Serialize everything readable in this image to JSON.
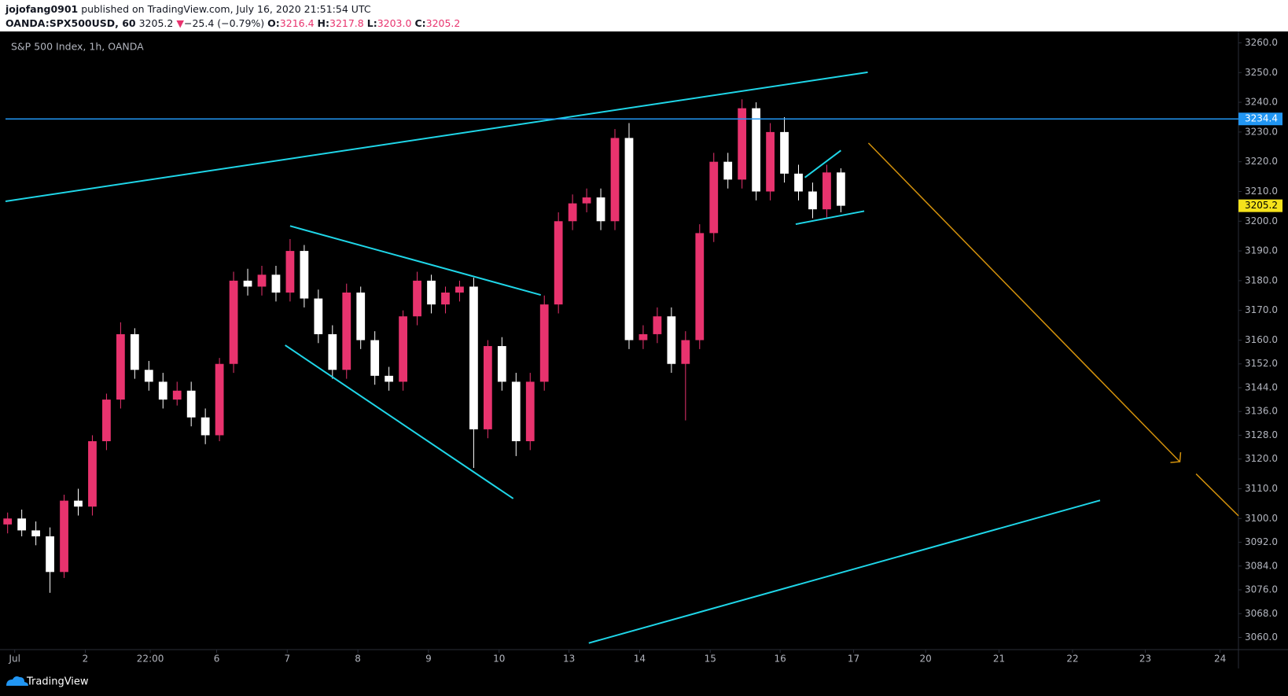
{
  "header": {
    "author": "jojofang0901",
    "published": "published on TradingView.com, July 16, 2020 21:51:54 UTC",
    "symbol": "OANDA:SPX500USD, 60",
    "last": "3205.2",
    "arrow": "▼",
    "change": "−25.4 (−0.79%)",
    "ohlc": [
      {
        "key": "O:",
        "value": "3216.4"
      },
      {
        "key": "H:",
        "value": "3217.8"
      },
      {
        "key": "L:",
        "value": "3203.0"
      },
      {
        "key": "C:",
        "value": "3205.2"
      }
    ]
  },
  "footer": {
    "brand": "TradingView"
  },
  "chart_data": {
    "type": "candlestick",
    "title": "S&P 500 Index, 1h, OANDA",
    "up_color": "#e8336e",
    "down_color": "#ffffff",
    "line_color": "#1fd6e8",
    "hline_color": "#2196f3",
    "arrow_color": "#d4920c",
    "last_color": "#f5e21b",
    "xlim": [
      -0.13,
      17.33
    ],
    "ylim": [
      3055.9,
      3263.3
    ],
    "xticks": [
      {
        "value": 0,
        "label": "Jul"
      },
      {
        "value": 1,
        "label": "2"
      },
      {
        "value": 1.92,
        "label": "22:00"
      },
      {
        "value": 2.86,
        "label": "6"
      },
      {
        "value": 3.86,
        "label": "7"
      },
      {
        "value": 4.86,
        "label": "8"
      },
      {
        "value": 5.86,
        "label": "9"
      },
      {
        "value": 6.86,
        "label": "10"
      },
      {
        "value": 7.85,
        "label": "13"
      },
      {
        "value": 8.85,
        "label": "14"
      },
      {
        "value": 9.85,
        "label": "15"
      },
      {
        "value": 10.84,
        "label": "16"
      },
      {
        "value": 11.88,
        "label": "17"
      },
      {
        "value": 12.9,
        "label": "20"
      },
      {
        "value": 13.94,
        "label": "21"
      },
      {
        "value": 14.98,
        "label": "22"
      },
      {
        "value": 16.01,
        "label": "23"
      },
      {
        "value": 17.07,
        "label": "24"
      }
    ],
    "yticks": [
      {
        "value": 3260,
        "label": "3260.0"
      },
      {
        "value": 3250,
        "label": "3250.0"
      },
      {
        "value": 3240,
        "label": "3240.0"
      },
      {
        "value": 3230,
        "label": "3230.0"
      },
      {
        "value": 3220,
        "label": "3220.0"
      },
      {
        "value": 3210,
        "label": "3210.0"
      },
      {
        "value": 3200,
        "label": "3200.0"
      },
      {
        "value": 3190,
        "label": "3190.0"
      },
      {
        "value": 3180,
        "label": "3180.0"
      },
      {
        "value": 3170,
        "label": "3170.0"
      },
      {
        "value": 3160,
        "label": "3160.0"
      },
      {
        "value": 3152,
        "label": "3152.0"
      },
      {
        "value": 3144,
        "label": "3144.0"
      },
      {
        "value": 3136,
        "label": "3136.0"
      },
      {
        "value": 3128,
        "label": "3128.0"
      },
      {
        "value": 3120,
        "label": "3120.0"
      },
      {
        "value": 3110,
        "label": "3110.0"
      },
      {
        "value": 3100,
        "label": "3100.0"
      },
      {
        "value": 3092,
        "label": "3092.0"
      },
      {
        "value": 3084,
        "label": "3084.0"
      },
      {
        "value": 3076,
        "label": "3076.0"
      },
      {
        "value": 3068,
        "label": "3068.0"
      },
      {
        "value": 3060,
        "label": "3060.0"
      }
    ],
    "x": [
      -0.1,
      0.1,
      0.3,
      0.5,
      0.7,
      0.9,
      1.1,
      1.3,
      1.5,
      1.7,
      1.9,
      2.1,
      2.3,
      2.5,
      2.7,
      2.9,
      3.1,
      3.3,
      3.5,
      3.7,
      3.9,
      4.1,
      4.3,
      4.5,
      4.7,
      4.9,
      5.1,
      5.3,
      5.5,
      5.7,
      5.9,
      6.1,
      6.3,
      6.5,
      6.7,
      6.9,
      7.1,
      7.3,
      7.5,
      7.7,
      7.9,
      8.1,
      8.3,
      8.5,
      8.7,
      8.9,
      9.1,
      9.3,
      9.5,
      9.7,
      9.9,
      10.1,
      10.3,
      10.5,
      10.7,
      10.9,
      11.1,
      11.3,
      11.5,
      11.7
    ],
    "open": [
      3098,
      3100,
      3096,
      3094,
      3082,
      3106,
      3104,
      3126,
      3140,
      3162,
      3150,
      3146,
      3140,
      3143,
      3134,
      3128,
      3152,
      3180,
      3178,
      3182,
      3176,
      3190,
      3174,
      3162,
      3150,
      3176,
      3160,
      3148,
      3146,
      3168,
      3180,
      3172,
      3176,
      3178,
      3130,
      3158,
      3146,
      3126,
      3146,
      3172,
      3200,
      3206,
      3208,
      3200,
      3228,
      3160,
      3162,
      3168,
      3152,
      3160,
      3196,
      3220,
      3214,
      3238,
      3210,
      3230,
      3216,
      3210,
      3204,
      3216.4
    ],
    "high": [
      3102,
      3103,
      3099,
      3097,
      3108,
      3110,
      3128,
      3142,
      3166,
      3164,
      3153,
      3149,
      3146,
      3146,
      3137,
      3154,
      3183,
      3184,
      3185,
      3185,
      3194,
      3192,
      3177,
      3165,
      3179,
      3178,
      3163,
      3151,
      3170,
      3183,
      3182,
      3178,
      3180,
      3181,
      3160,
      3161,
      3149,
      3149,
      3175,
      3203,
      3209,
      3211,
      3211,
      3231,
      3233,
      3165,
      3171,
      3171,
      3163,
      3199,
      3223,
      3223,
      3241,
      3240,
      3233,
      3235,
      3219,
      3213,
      3219,
      3217.8
    ],
    "low": [
      3095,
      3094,
      3091,
      3075,
      3080,
      3101,
      3101,
      3123,
      3137,
      3147,
      3143,
      3137,
      3138,
      3131,
      3125,
      3126,
      3149,
      3175,
      3175,
      3173,
      3173,
      3171,
      3159,
      3147,
      3147,
      3157,
      3145,
      3143,
      3143,
      3165,
      3169,
      3169,
      3173,
      3117,
      3127,
      3143,
      3121,
      3123,
      3143,
      3169,
      3197,
      3203,
      3197,
      3197,
      3157,
      3157,
      3159,
      3149,
      3133,
      3157,
      3193,
      3211,
      3211,
      3207,
      3207,
      3213,
      3207,
      3201,
      3201,
      3203.0
    ],
    "close": [
      3100,
      3096,
      3094,
      3082,
      3106,
      3104,
      3126,
      3140,
      3162,
      3150,
      3146,
      3140,
      3143,
      3134,
      3128,
      3152,
      3180,
      3178,
      3182,
      3176,
      3190,
      3174,
      3162,
      3150,
      3176,
      3160,
      3148,
      3146,
      3168,
      3180,
      3172,
      3176,
      3178,
      3130,
      3158,
      3146,
      3126,
      3146,
      3172,
      3200,
      3206,
      3208,
      3200,
      3228,
      3160,
      3162,
      3168,
      3152,
      3160,
      3196,
      3220,
      3214,
      3238,
      3210,
      3230,
      3216,
      3210,
      3204,
      3216.4,
      3205.2
    ],
    "hline": 3234.4,
    "last_price": 3205.2,
    "trendlines": [
      {
        "x": [
          -0.13,
          12.08
        ],
        "y": [
          3206.7,
          3250.1
        ]
      },
      {
        "x": [
          3.9,
          7.45
        ],
        "y": [
          3198.4,
          3175.2
        ]
      },
      {
        "x": [
          3.83,
          7.06
        ],
        "y": [
          3158.3,
          3106.7
        ]
      },
      {
        "x": [
          11.19,
          11.7
        ],
        "y": [
          3214.7,
          3223.8
        ]
      },
      {
        "x": [
          11.06,
          12.03
        ],
        "y": [
          3199.0,
          3203.4
        ]
      },
      {
        "x": [
          8.13,
          15.37
        ],
        "y": [
          3058.1,
          3106.1
        ]
      }
    ],
    "arrow": [
      {
        "x": [
          12.09,
          16.5
        ],
        "y": [
          3226.3,
          3119.1
        ]
      },
      {
        "x": [
          16.73,
          17.33
        ],
        "y": [
          3115.0,
          3100.9
        ]
      }
    ]
  }
}
